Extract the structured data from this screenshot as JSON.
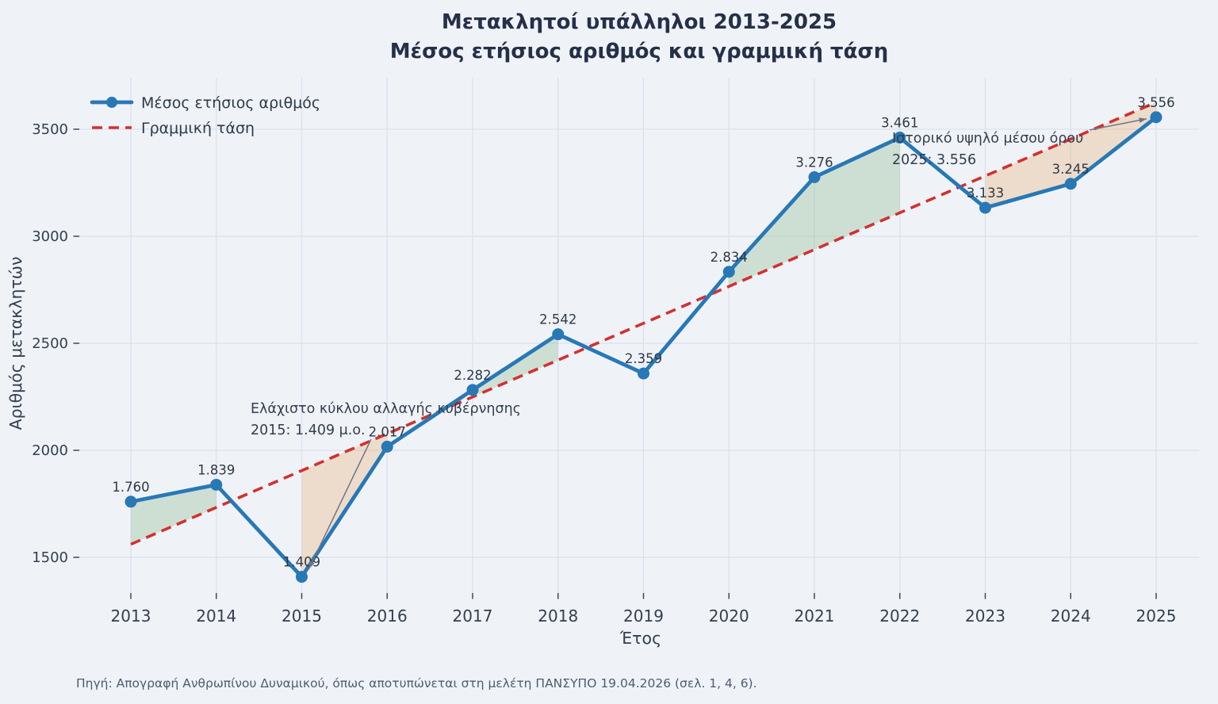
{
  "title": "Μετακλητοί υπάλληλοι 2013-2025",
  "subtitle": "Μέσος ετήσιος αριθμός και γραμμική τάση",
  "footer": {
    "text": "Πηγή: Απογραφή Ανθρωπίνου Δυναμικού, όπως αποτυπώνεται στη μελέτη ΠΑΝΣΥΠΟ 19.04.2026 (σελ. 1, 4, 6)."
  },
  "palette": {
    "background": "#eff3f8",
    "grid": "#dbe1ed",
    "line": "#2878b6",
    "trend": "#d3302f",
    "fill_above": "#7db47d",
    "fill_below": "#eba05a",
    "text_dark": "#2e3845",
    "text_axis": "#333e4e",
    "annotation_arrow": "#6e7785"
  },
  "chart_data": {
    "type": "line",
    "title": "Μετακλητοί υπάλληλοι 2013-2025",
    "subtitle": "Μέσος ετήσιος αριθμός και γραμμική τάση",
    "xlabel": "Έτος",
    "ylabel": "Αριθμός μετακλητών",
    "x": [
      2013,
      2014,
      2015,
      2016,
      2017,
      2018,
      2019,
      2020,
      2021,
      2022,
      2023,
      2024,
      2025
    ],
    "xtick_labels": [
      "2013",
      "2014",
      "2015",
      "2016",
      "2017",
      "2018",
      "2019",
      "2020",
      "2021",
      "2022",
      "2023",
      "2024",
      "2025"
    ],
    "yticks": [
      1500,
      2000,
      2500,
      3000,
      3500
    ],
    "ytick_labels": [
      "1500",
      "2000",
      "2500",
      "3000",
      "3500"
    ],
    "ylim": [
      1333,
      3740
    ],
    "grid": true,
    "legend_position": "upper-left",
    "series": [
      {
        "name": "Μέσος ετήσιος αριθμός",
        "style": "solid-markers",
        "values": [
          1760,
          1839,
          1409,
          2017,
          2282,
          2542,
          2359,
          2834,
          3276,
          3461,
          3133,
          3245,
          3556
        ],
        "point_labels": [
          "1.760",
          "1.839",
          "1.409",
          "2.017",
          "2.282",
          "2.542",
          "2.359",
          "2.834",
          "3.276",
          "3.461",
          "3.133",
          "3.245",
          "3.556"
        ]
      },
      {
        "name": "Γραμμική τάση",
        "style": "dashed",
        "trend_start": 1561,
        "trend_end": 3626
      }
    ],
    "fills": {
      "above_trend": "green",
      "below_trend": "orange"
    },
    "annotations": [
      {
        "id": "min-2015",
        "lines": [
          "Ελάχιστο κύκλου αλλαγής κυβέρνησης",
          "2015: 1.409 μ.ο."
        ],
        "target_year": 2015,
        "target_value": 1409
      },
      {
        "id": "max-2025",
        "lines": [
          "Ιστορικό υψηλό μέσου όρου",
          "2025: 3.556"
        ],
        "target_year": 2025,
        "target_value": 3556
      }
    ]
  }
}
